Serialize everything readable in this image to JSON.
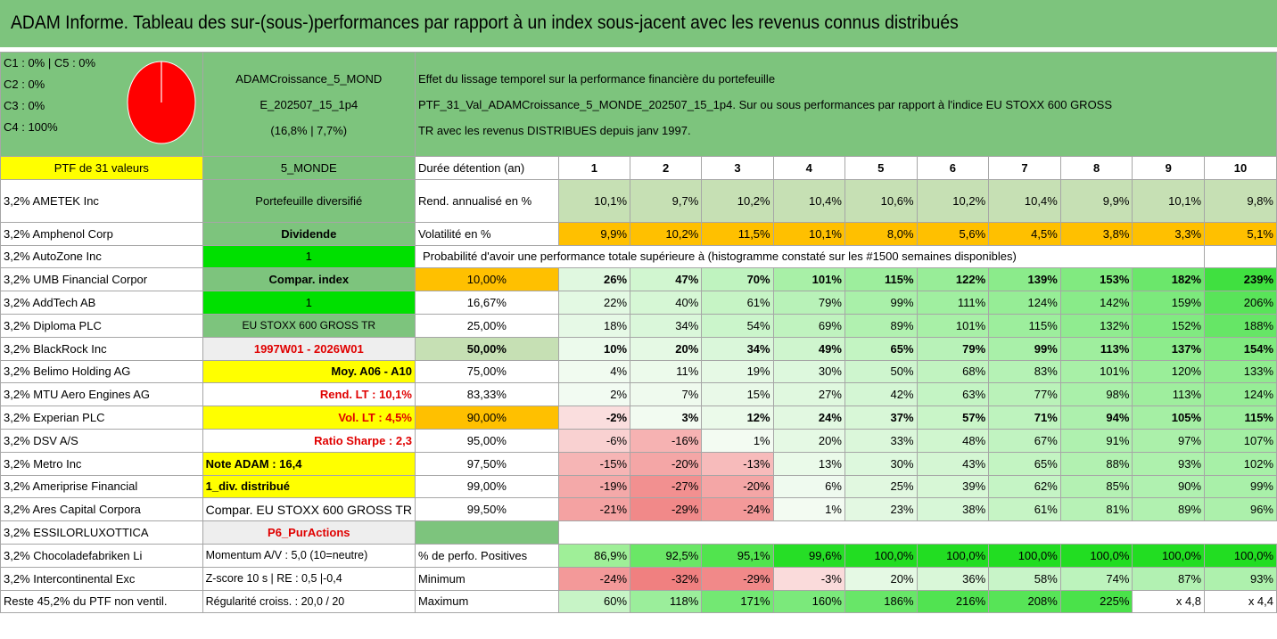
{
  "title": "ADAM Informe. Tableau des sur-(sous-)performances par rapport à un index sous-jacent avec les revenus connus distribués",
  "classes": [
    "C1 : 0% | C5 : 0%",
    "C2 : 0%",
    "C3 : 0%",
    "C4 : 100%"
  ],
  "portfolio_name": [
    "ADAMCroissance_5_MOND",
    "E_202507_15_1p4",
    "(16,8% | 7,7%)"
  ],
  "description": [
    "Effet du lissage temporel sur la performance financière du portefeuille",
    "PTF_31_Val_ADAMCroissance_5_MONDE_202507_15_1p4. Sur ou sous performances par rapport à l'indice EU STOXX 600 GROSS",
    "TR avec les revenus DISTRIBUES depuis janv 1997."
  ],
  "ptf_label": "PTF de 31 valeurs",
  "profile_label": "5_MONDE",
  "duration_label": "Durée détention (an)",
  "years": [
    "1",
    "2",
    "3",
    "4",
    "5",
    "6",
    "7",
    "8",
    "9",
    "10"
  ],
  "holdings": [
    "3,2% AMETEK Inc",
    "3,2% Amphenol Corp",
    "3,2% AutoZone Inc",
    "3,2% UMB Financial Corpor",
    "3,2% AddTech AB",
    "3,2% Diploma PLC",
    "3,2% BlackRock Inc",
    "3,2% Belimo Holding AG",
    "3,2% MTU Aero Engines AG",
    "3,2% Experian PLC",
    "3,2% DSV A/S",
    "3,2% Metro Inc",
    "3,2% Ameriprise Financial",
    "3,2% Ares Capital Corpora",
    "3,2% ESSILORLUXOTTICA",
    "3,2% Chocoladefabriken Li",
    "3,2% Intercontinental Exc",
    "Reste 45,2% du PTF non ventil."
  ],
  "side": [
    "Portefeuille diversifié",
    "Dividende",
    "1",
    "Compar. index",
    "1",
    "EU STOXX 600 GROSS TR",
    "1997W01 - 2026W01",
    "Moy. A06 - A10",
    "Rend. LT : 10,1%",
    "Vol. LT : 4,5%",
    "Ratio Sharpe : 2,3",
    "Note ADAM : 16,4",
    "1_div. distribué",
    "Compar. EU STOXX 600 GROSS TR",
    "P6_PurActions",
    "Momentum A/V : 5,0 (10=neutre)",
    "Z-score 10 s | RE : 0,5 |-0,4",
    "Régularité croiss. : 20,0 / 20"
  ],
  "rend": {
    "label": "Rend. annualisé en %",
    "values": [
      "10,1%",
      "9,7%",
      "10,2%",
      "10,4%",
      "10,6%",
      "10,2%",
      "10,4%",
      "9,9%",
      "10,1%",
      "9,8%"
    ]
  },
  "vol": {
    "label": "Volatilité en %",
    "values": [
      "9,9%",
      "10,2%",
      "11,5%",
      "10,1%",
      "8,0%",
      "5,6%",
      "4,5%",
      "3,8%",
      "3,3%",
      "5,1%"
    ]
  },
  "prob_title": "Probabilité d'avoir une performance totale supérieure à (histogramme constaté sur les #1500 semaines disponibles)",
  "prob_rows": [
    {
      "p": "10,00%",
      "v": [
        "26%",
        "47%",
        "70%",
        "101%",
        "115%",
        "122%",
        "139%",
        "153%",
        "182%",
        "239%"
      ]
    },
    {
      "p": "16,67%",
      "v": [
        "22%",
        "40%",
        "61%",
        "79%",
        "99%",
        "111%",
        "124%",
        "142%",
        "159%",
        "206%"
      ]
    },
    {
      "p": "25,00%",
      "v": [
        "18%",
        "34%",
        "54%",
        "69%",
        "89%",
        "101%",
        "115%",
        "132%",
        "152%",
        "188%"
      ]
    },
    {
      "p": "50,00%",
      "v": [
        "10%",
        "20%",
        "34%",
        "49%",
        "65%",
        "79%",
        "99%",
        "113%",
        "137%",
        "154%"
      ]
    },
    {
      "p": "75,00%",
      "v": [
        "4%",
        "11%",
        "19%",
        "30%",
        "50%",
        "68%",
        "83%",
        "101%",
        "120%",
        "133%"
      ]
    },
    {
      "p": "83,33%",
      "v": [
        "2%",
        "7%",
        "15%",
        "27%",
        "42%",
        "63%",
        "77%",
        "98%",
        "113%",
        "124%"
      ]
    },
    {
      "p": "90,00%",
      "v": [
        "-2%",
        "3%",
        "12%",
        "24%",
        "37%",
        "57%",
        "71%",
        "94%",
        "105%",
        "115%"
      ]
    },
    {
      "p": "95,00%",
      "v": [
        "-6%",
        "-16%",
        "1%",
        "20%",
        "33%",
        "48%",
        "67%",
        "91%",
        "97%",
        "107%"
      ]
    },
    {
      "p": "97,50%",
      "v": [
        "-15%",
        "-20%",
        "-13%",
        "13%",
        "30%",
        "43%",
        "65%",
        "88%",
        "93%",
        "102%"
      ]
    },
    {
      "p": "99,00%",
      "v": [
        "-19%",
        "-27%",
        "-20%",
        "6%",
        "25%",
        "39%",
        "62%",
        "85%",
        "90%",
        "99%"
      ]
    },
    {
      "p": "99,50%",
      "v": [
        "-21%",
        "-29%",
        "-24%",
        "1%",
        "23%",
        "38%",
        "61%",
        "81%",
        "89%",
        "96%"
      ]
    }
  ],
  "positives": {
    "label": "% de perfo. Positives",
    "values": [
      "86,9%",
      "92,5%",
      "95,1%",
      "99,6%",
      "100,0%",
      "100,0%",
      "100,0%",
      "100,0%",
      "100,0%",
      "100,0%"
    ]
  },
  "minimum": {
    "label": "Minimum",
    "values": [
      "-24%",
      "-32%",
      "-29%",
      "-3%",
      "20%",
      "36%",
      "58%",
      "74%",
      "87%",
      "93%"
    ]
  },
  "maximum": {
    "label": "Maximum",
    "values": [
      "60%",
      "118%",
      "171%",
      "160%",
      "186%",
      "216%",
      "208%",
      "225%",
      "x 4,8",
      "x 4,4"
    ]
  },
  "colors": {
    "header_green": "#7dc47d",
    "yellow": "#ffff00",
    "bright_green": "#00e000",
    "orange": "#ffc000",
    "pie_red": "#ff0000"
  }
}
